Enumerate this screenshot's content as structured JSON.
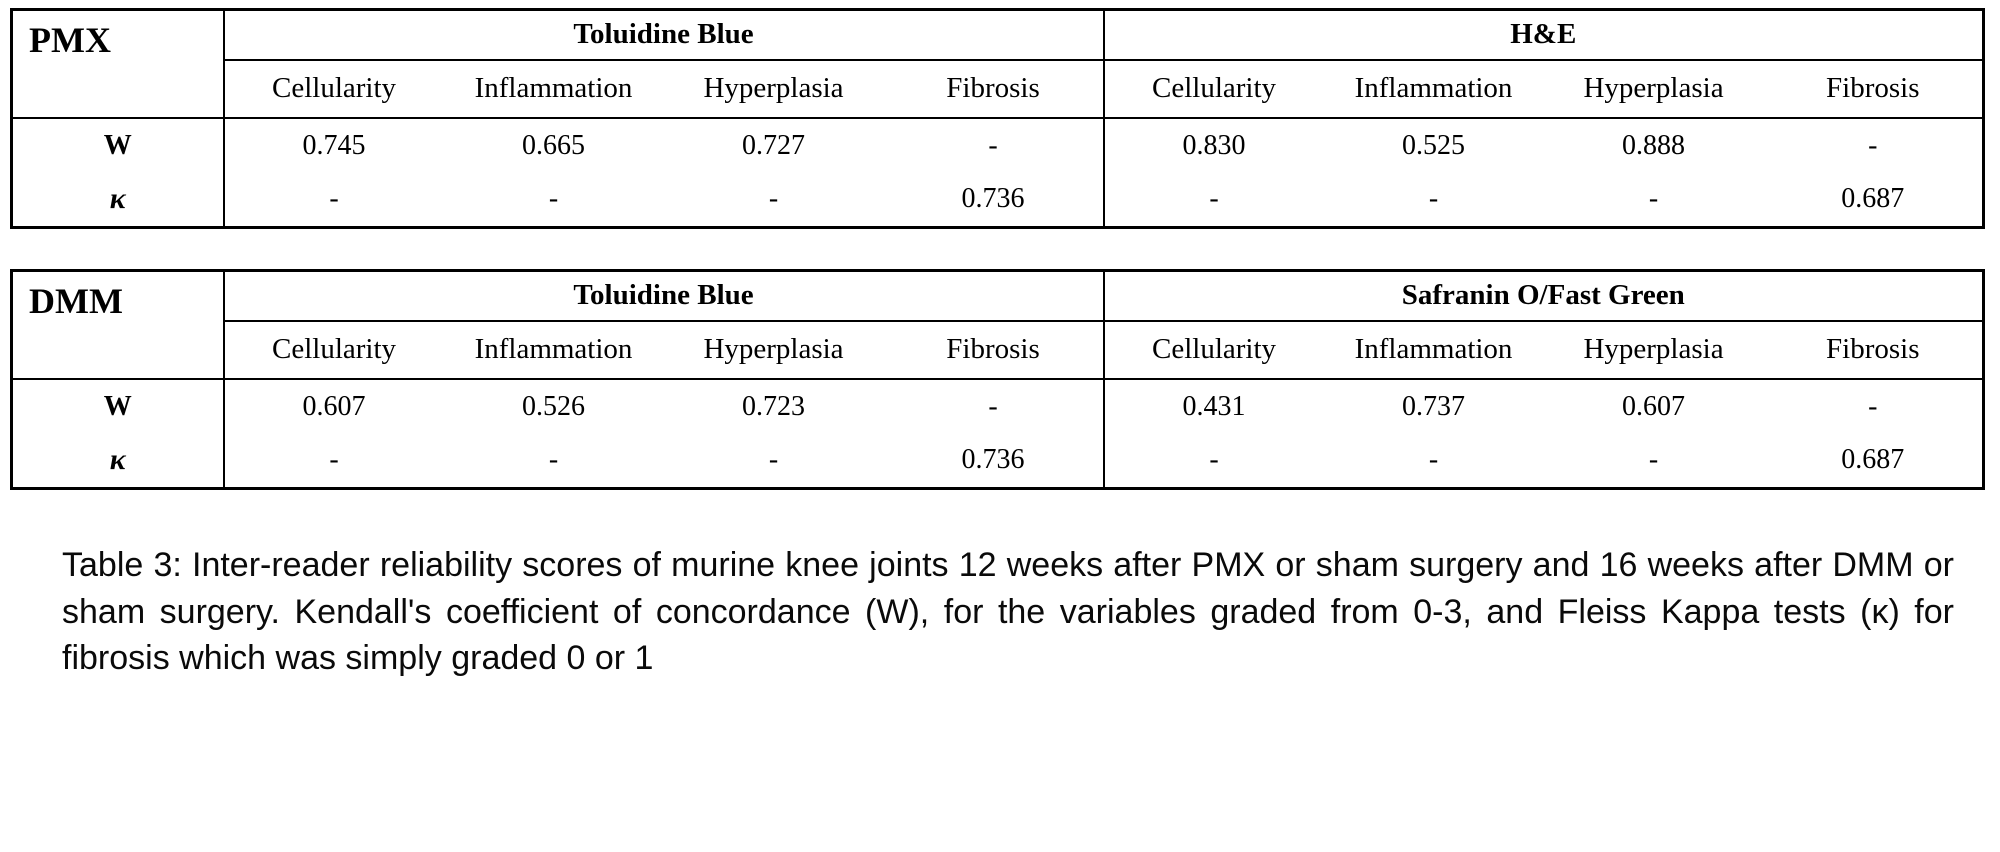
{
  "tables": [
    {
      "row_header": "PMX",
      "groups": [
        {
          "title": "Toluidine Blue",
          "columns": [
            "Cellularity",
            "Inflammation",
            "Hyperplasia",
            "Fibrosis"
          ]
        },
        {
          "title": "H&E",
          "columns": [
            "Cellularity",
            "Inflammation",
            "Hyperplasia",
            "Fibrosis"
          ]
        }
      ],
      "rows": [
        {
          "label": "W",
          "values": [
            "0.745",
            "0.665",
            "0.727",
            "-",
            "0.830",
            "0.525",
            "0.888",
            "-"
          ]
        },
        {
          "label": "κ",
          "values": [
            "-",
            "-",
            "-",
            "0.736",
            "-",
            "-",
            "-",
            "0.687"
          ]
        }
      ]
    },
    {
      "row_header": "DMM",
      "groups": [
        {
          "title": "Toluidine Blue",
          "columns": [
            "Cellularity",
            "Inflammation",
            "Hyperplasia",
            "Fibrosis"
          ]
        },
        {
          "title": "Safranin O/Fast Green",
          "columns": [
            "Cellularity",
            "Inflammation",
            "Hyperplasia",
            "Fibrosis"
          ]
        }
      ],
      "rows": [
        {
          "label": "W",
          "values": [
            "0.607",
            "0.526",
            "0.723",
            "-",
            "0.431",
            "0.737",
            "0.607",
            "-"
          ]
        },
        {
          "label": "κ",
          "values": [
            "-",
            "-",
            "-",
            "0.736",
            "-",
            "-",
            "-",
            "0.687"
          ]
        }
      ]
    }
  ],
  "caption": "Table 3: Inter-reader reliability scores of murine knee joints 12 weeks after PMX or sham surgery and 16 weeks after DMM or sham surgery. Kendall's coefficient of concordance (W), for the variables graded from 0-3, and Fleiss Kappa tests (κ) for fibrosis which was simply graded 0 or 1"
}
